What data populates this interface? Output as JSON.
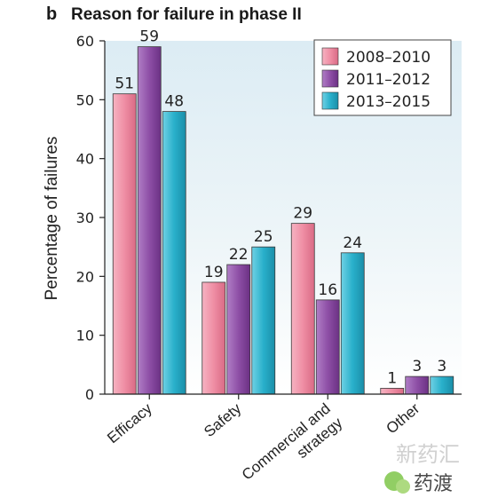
{
  "panel_letter": "b",
  "chart_data": {
    "type": "bar",
    "title": "Reason for failure in phase II",
    "ylabel": "Percentage of failures",
    "xlabel": "",
    "ylim": [
      0,
      60
    ],
    "yticks": [
      0,
      10,
      20,
      30,
      40,
      50,
      60
    ],
    "categories": [
      [
        "Efficacy"
      ],
      [
        "Safety"
      ],
      [
        "Commercial and",
        "strategy"
      ],
      [
        "Other"
      ]
    ],
    "series": [
      {
        "name": "2008–2010",
        "values": [
          51,
          19,
          29,
          1
        ],
        "color": "#ef8ea4"
      },
      {
        "name": "2011–2012",
        "values": [
          59,
          22,
          16,
          3
        ],
        "color": "#8e4fa6"
      },
      {
        "name": "2013–2015",
        "values": [
          48,
          25,
          24,
          3
        ],
        "color": "#29b0cb"
      }
    ],
    "legend_position": "top-right",
    "grid": false
  },
  "watermark": {
    "line1": "新药汇",
    "line2": "药渡"
  }
}
